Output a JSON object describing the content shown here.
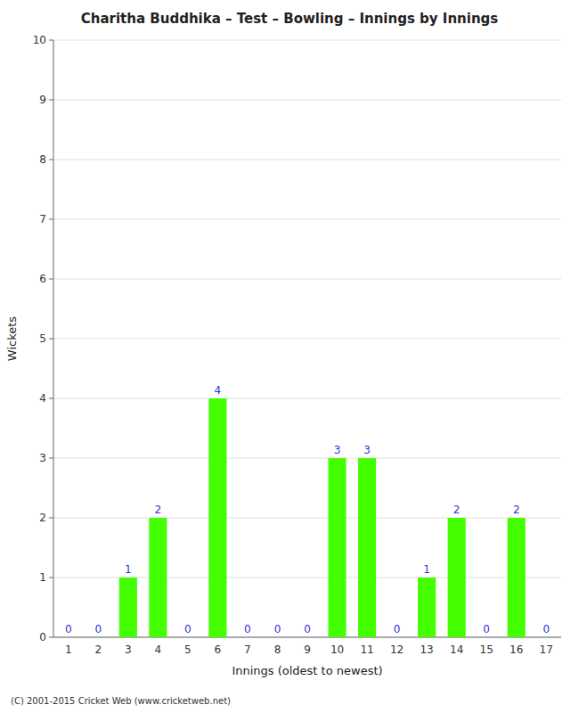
{
  "chart_data": {
    "type": "bar",
    "title": "Charitha Buddhika – Test – Bowling – Innings by Innings",
    "x_label": "Innings (oldest to newest)",
    "y_label": "Wickets",
    "categories": [
      "1",
      "2",
      "3",
      "4",
      "5",
      "6",
      "7",
      "8",
      "9",
      "10",
      "11",
      "12",
      "13",
      "14",
      "15",
      "16",
      "17"
    ],
    "values": [
      0,
      0,
      1,
      2,
      0,
      4,
      0,
      0,
      0,
      3,
      3,
      0,
      1,
      2,
      0,
      2,
      0
    ],
    "color": "#44ff00",
    "ylim": [
      0,
      10
    ],
    "yticks": [
      0,
      1,
      2,
      3,
      4,
      5,
      6,
      7,
      8,
      9,
      10
    ],
    "grid": true,
    "data_labels": true,
    "annotations": [
      "(C) 2001-2015 Cricket Web (www.cricketweb.net)"
    ]
  }
}
